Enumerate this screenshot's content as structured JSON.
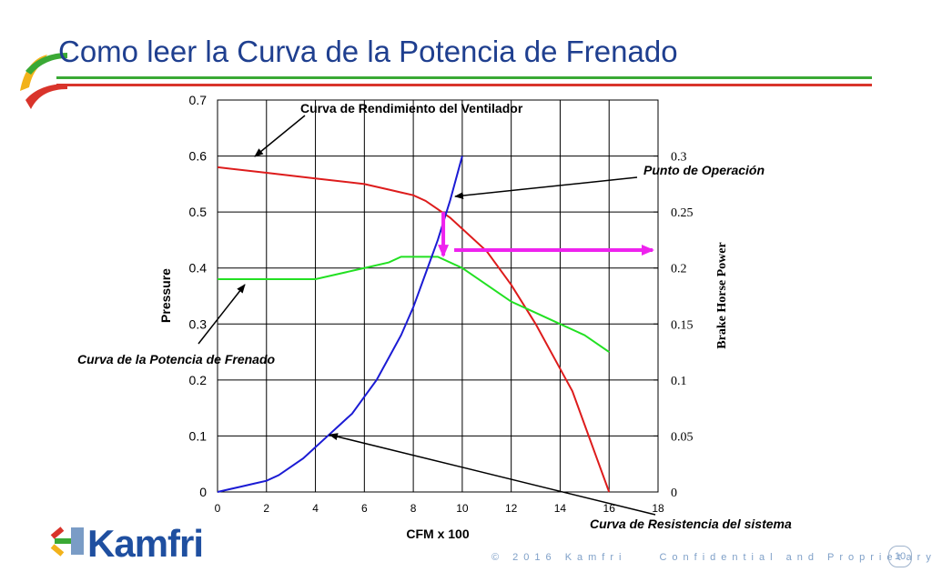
{
  "slide": {
    "title": "Como leer la Curva de la Potencia de Frenado",
    "logo_text": "Kamfri",
    "footer_copyright": "© 2016 Kamfri",
    "footer_confidential": "Confidential and Proprietary",
    "page_number": "10",
    "colors": {
      "title": "#1f3f8f",
      "accent_green": "#3aa935",
      "accent_red": "#d9342b",
      "accent_yellow": "#f2b21b"
    }
  },
  "chart_data": {
    "type": "line",
    "xlabel": "CFM x 100",
    "ylabel": "Pressure",
    "y2label": "Brake Horse Power",
    "xlim": [
      0,
      18
    ],
    "ylim": [
      0,
      0.7
    ],
    "y2lim": [
      0,
      0.35
    ],
    "x_ticks": [
      "0",
      "2",
      "4",
      "6",
      "8",
      "10",
      "12",
      "14",
      "16",
      "18"
    ],
    "y_ticks": [
      "0",
      "0.1",
      "0.2",
      "0.3",
      "0.4",
      "0.5",
      "0.6",
      "0.7"
    ],
    "y2_ticks": [
      "0",
      "0.05",
      "0.1",
      "0.15",
      "0.2",
      "0.25",
      "0.3"
    ],
    "grid": true,
    "series": [
      {
        "color": "#dd1c1c",
        "axis": "left",
        "x": [
          0,
          2,
          4,
          6,
          7,
          7.5,
          8,
          8.5,
          9,
          9.5,
          10,
          11,
          12,
          13,
          14,
          14.5,
          15,
          15.5,
          16
        ],
        "y": [
          0.58,
          0.57,
          0.56,
          0.55,
          0.54,
          0.535,
          0.53,
          0.52,
          0.505,
          0.49,
          0.47,
          0.43,
          0.37,
          0.3,
          0.22,
          0.18,
          0.12,
          0.06,
          0
        ]
      },
      {
        "color": "#22e022",
        "axis": "right",
        "x": [
          0,
          1,
          2,
          3,
          4,
          5,
          6,
          7,
          7.5,
          8,
          9,
          10,
          11,
          12,
          13,
          14,
          15,
          16
        ],
        "y": [
          0.19,
          0.19,
          0.19,
          0.19,
          0.19,
          0.195,
          0.2,
          0.205,
          0.21,
          0.21,
          0.21,
          0.2,
          0.185,
          0.17,
          0.16,
          0.15,
          0.14,
          0.125
        ]
      },
      {
        "color": "#1b1bd4",
        "axis": "left",
        "x": [
          0,
          1,
          1.5,
          2,
          2.5,
          3,
          3.5,
          4,
          4.5,
          5,
          5.5,
          6,
          6.5,
          7,
          7.5,
          8,
          8.5,
          9,
          9.5,
          10
        ],
        "y": [
          0,
          0.01,
          0.015,
          0.02,
          0.03,
          0.045,
          0.06,
          0.08,
          0.1,
          0.12,
          0.14,
          0.17,
          0.2,
          0.24,
          0.28,
          0.33,
          0.39,
          0.45,
          0.52,
          0.6
        ]
      }
    ],
    "annotations": [
      {
        "text": "Curva de Rendimiento del Ventilador"
      },
      {
        "text": "Punto de Operación"
      },
      {
        "text": "Curva de la Potencia de Frenado"
      },
      {
        "text": "Curva de Resistencia del sistema"
      }
    ],
    "operating_point": {
      "x": 9.3,
      "y": 0.5
    },
    "magenta_color": "#ee22ee"
  }
}
